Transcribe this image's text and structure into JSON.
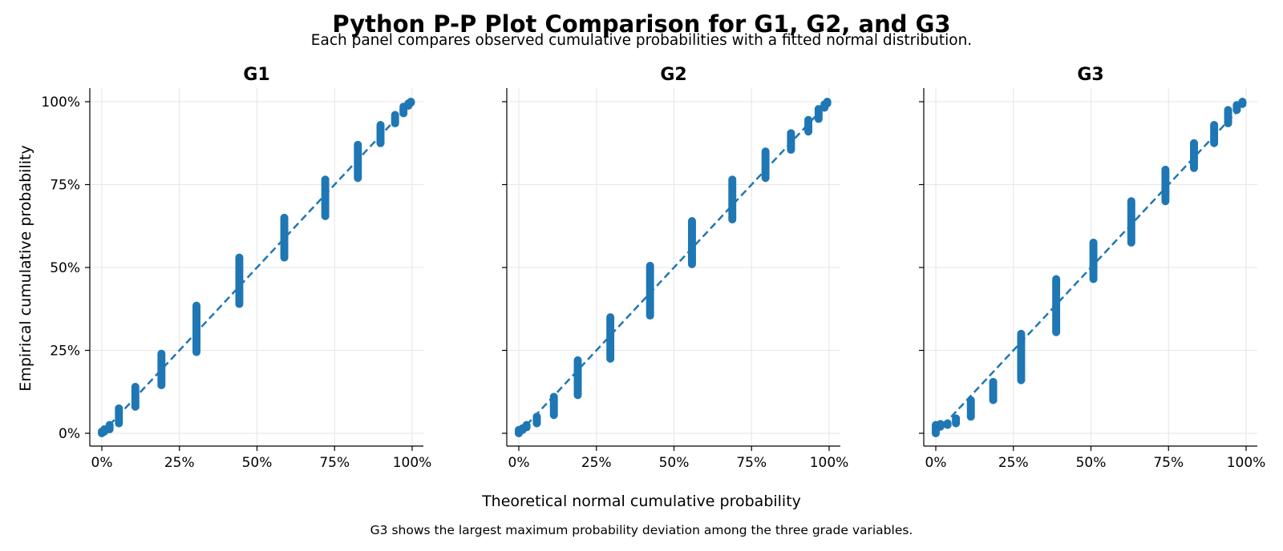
{
  "title": "Python P-P Plot Comparison for G1, G2, and G3",
  "subtitle": "Each panel compares observed cumulative probabilities with a fitted normal distribution.",
  "footnote": "G3 shows the largest maximum probability deviation among the three grade variables.",
  "colors": {
    "points": "#1f77b4",
    "reference": "#1f77b4"
  },
  "chart_data": [
    {
      "type": "scatter",
      "title": "G1",
      "xlabel": "Theoretical normal cumulative probability",
      "ylabel": "Empirical cumulative probability",
      "xlim": [
        0,
        1
      ],
      "ylim": [
        0,
        1
      ],
      "x_ticks": [
        "0%",
        "25%",
        "50%",
        "75%",
        "100%"
      ],
      "y_ticks": [
        "0%",
        "25%",
        "50%",
        "75%",
        "100%"
      ],
      "grid": true,
      "reference_line": [
        [
          0,
          0
        ],
        [
          1,
          1
        ]
      ],
      "groups": [
        {
          "x": 0.0,
          "y": [
            0.0,
            0.005
          ]
        },
        {
          "x": 0.008,
          "y": [
            0.005,
            0.012
          ]
        },
        {
          "x": 0.025,
          "y": [
            0.012,
            0.025
          ]
        },
        {
          "x": 0.055,
          "y": [
            0.03,
            0.075
          ]
        },
        {
          "x": 0.108,
          "y": [
            0.08,
            0.14
          ]
        },
        {
          "x": 0.192,
          "y": [
            0.145,
            0.24
          ]
        },
        {
          "x": 0.305,
          "y": [
            0.245,
            0.385
          ]
        },
        {
          "x": 0.443,
          "y": [
            0.39,
            0.53
          ]
        },
        {
          "x": 0.588,
          "y": [
            0.53,
            0.65
          ]
        },
        {
          "x": 0.72,
          "y": [
            0.655,
            0.765
          ]
        },
        {
          "x": 0.825,
          "y": [
            0.77,
            0.87
          ]
        },
        {
          "x": 0.898,
          "y": [
            0.875,
            0.93
          ]
        },
        {
          "x": 0.945,
          "y": [
            0.935,
            0.96
          ]
        },
        {
          "x": 0.972,
          "y": [
            0.965,
            0.985
          ]
        },
        {
          "x": 0.988,
          "y": [
            0.988,
            0.995
          ]
        },
        {
          "x": 0.996,
          "y": [
            0.997,
            1.0
          ]
        }
      ]
    },
    {
      "type": "scatter",
      "title": "G2",
      "xlabel": "Theoretical normal cumulative probability",
      "ylabel": "",
      "xlim": [
        0,
        1
      ],
      "ylim": [
        0,
        1
      ],
      "x_ticks": [
        "0%",
        "25%",
        "50%",
        "75%",
        "100%"
      ],
      "y_ticks": [],
      "grid": true,
      "reference_line": [
        [
          0,
          0
        ],
        [
          1,
          1
        ]
      ],
      "groups": [
        {
          "x": 0.0,
          "y": [
            0.0,
            0.01
          ]
        },
        {
          "x": 0.012,
          "y": [
            0.01,
            0.015
          ]
        },
        {
          "x": 0.025,
          "y": [
            0.018,
            0.025
          ]
        },
        {
          "x": 0.058,
          "y": [
            0.03,
            0.05
          ]
        },
        {
          "x": 0.113,
          "y": [
            0.055,
            0.11
          ]
        },
        {
          "x": 0.19,
          "y": [
            0.115,
            0.22
          ]
        },
        {
          "x": 0.295,
          "y": [
            0.225,
            0.35
          ]
        },
        {
          "x": 0.423,
          "y": [
            0.355,
            0.505
          ]
        },
        {
          "x": 0.558,
          "y": [
            0.51,
            0.64
          ]
        },
        {
          "x": 0.688,
          "y": [
            0.645,
            0.765
          ]
        },
        {
          "x": 0.795,
          "y": [
            0.77,
            0.85
          ]
        },
        {
          "x": 0.877,
          "y": [
            0.855,
            0.905
          ]
        },
        {
          "x": 0.933,
          "y": [
            0.91,
            0.945
          ]
        },
        {
          "x": 0.966,
          "y": [
            0.948,
            0.978
          ]
        },
        {
          "x": 0.985,
          "y": [
            0.982,
            0.992
          ]
        },
        {
          "x": 0.994,
          "y": [
            0.995,
            1.0
          ]
        }
      ]
    },
    {
      "type": "scatter",
      "title": "G3",
      "xlabel": "Theoretical normal cumulative probability",
      "ylabel": "",
      "xlim": [
        0,
        1
      ],
      "ylim": [
        0,
        1
      ],
      "x_ticks": [
        "0%",
        "25%",
        "50%",
        "75%",
        "100%"
      ],
      "y_ticks": [],
      "grid": true,
      "reference_line": [
        [
          0,
          0
        ],
        [
          1,
          1
        ]
      ],
      "groups": [
        {
          "x": 0.0,
          "y": [
            0.0,
            0.025
          ]
        },
        {
          "x": 0.015,
          "y": [
            0.02,
            0.028
          ]
        },
        {
          "x": 0.038,
          "y": [
            0.025,
            0.03
          ]
        },
        {
          "x": 0.065,
          "y": [
            0.03,
            0.045
          ]
        },
        {
          "x": 0.113,
          "y": [
            0.05,
            0.1
          ]
        },
        {
          "x": 0.185,
          "y": [
            0.1,
            0.155
          ]
        },
        {
          "x": 0.275,
          "y": [
            0.16,
            0.3
          ]
        },
        {
          "x": 0.388,
          "y": [
            0.305,
            0.465
          ]
        },
        {
          "x": 0.508,
          "y": [
            0.465,
            0.575
          ]
        },
        {
          "x": 0.63,
          "y": [
            0.575,
            0.7
          ]
        },
        {
          "x": 0.74,
          "y": [
            0.7,
            0.795
          ]
        },
        {
          "x": 0.832,
          "y": [
            0.8,
            0.875
          ]
        },
        {
          "x": 0.897,
          "y": [
            0.875,
            0.93
          ]
        },
        {
          "x": 0.942,
          "y": [
            0.935,
            0.975
          ]
        },
        {
          "x": 0.97,
          "y": [
            0.975,
            0.99
          ]
        },
        {
          "x": 0.988,
          "y": [
            0.993,
            1.0
          ]
        }
      ]
    }
  ]
}
